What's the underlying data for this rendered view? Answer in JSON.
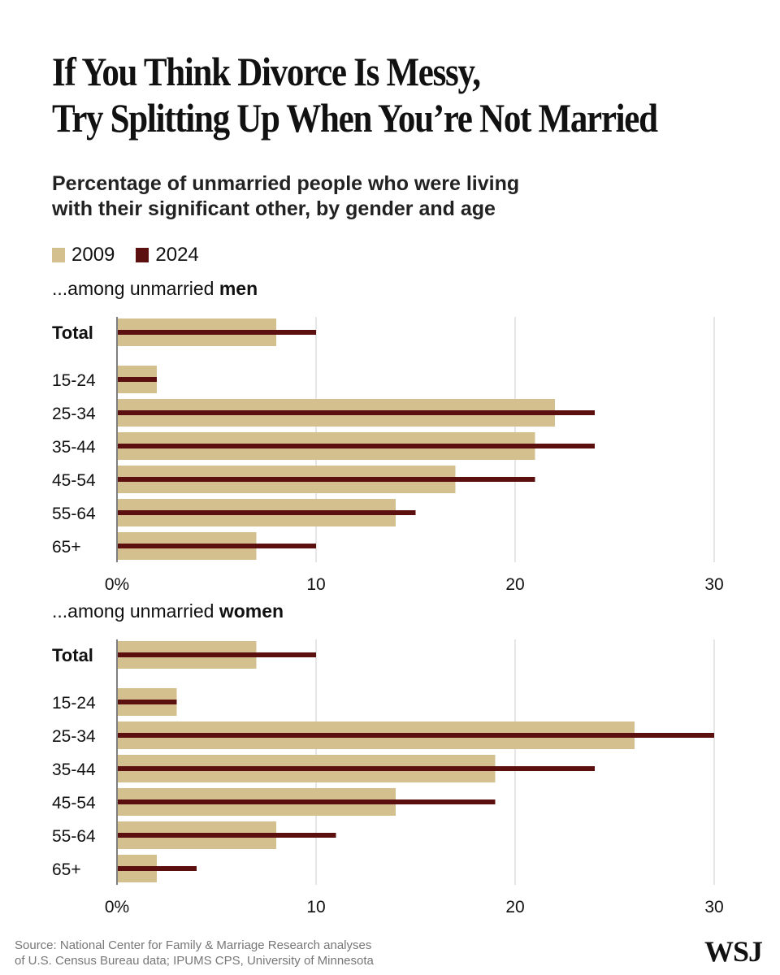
{
  "title_line1": "If You Think Divorce Is Messy,",
  "title_line2": "Try Splitting Up When You’re Not Married",
  "subtitle_line1": "Percentage of unmarried people who were living",
  "subtitle_line2": "with their significant other, by gender and age",
  "legend": [
    {
      "label": "2009",
      "color": "#d4c08e"
    },
    {
      "label": "2024",
      "color": "#5c0f0f"
    }
  ],
  "source_line1": "Source: National Center for Family & Marriage Research  analyses",
  "source_line2": "of U.S. Census Bureau data; IPUMS CPS, University of Minnesota",
  "logo": "WSJ",
  "chart_data": [
    {
      "type": "bar",
      "orientation": "horizontal",
      "label_prefix": "...among unmarried ",
      "label_bold": "men",
      "categories": [
        "Total",
        "15-24",
        "25-34",
        "35-44",
        "45-54",
        "55-64",
        "65+"
      ],
      "series": [
        {
          "name": "2009",
          "color": "#d4c08e",
          "values": [
            8,
            2,
            22,
            21,
            17,
            14,
            7
          ]
        },
        {
          "name": "2024",
          "color": "#5c0f0f",
          "values": [
            10,
            2,
            24,
            24,
            21,
            15,
            10
          ]
        }
      ],
      "xlim": [
        0,
        30
      ],
      "ticks": [
        "0%",
        "10",
        "20",
        "30"
      ],
      "grid": true
    },
    {
      "type": "bar",
      "orientation": "horizontal",
      "label_prefix": "...among unmarried ",
      "label_bold": "women",
      "categories": [
        "Total",
        "15-24",
        "25-34",
        "35-44",
        "45-54",
        "55-64",
        "65+"
      ],
      "series": [
        {
          "name": "2009",
          "color": "#d4c08e",
          "values": [
            7,
            3,
            26,
            19,
            14,
            8,
            2
          ]
        },
        {
          "name": "2024",
          "color": "#5c0f0f",
          "values": [
            10,
            3,
            30,
            24,
            19,
            11,
            4
          ]
        }
      ],
      "xlim": [
        0,
        30
      ],
      "ticks": [
        "0%",
        "10",
        "20",
        "30"
      ],
      "grid": true
    }
  ]
}
